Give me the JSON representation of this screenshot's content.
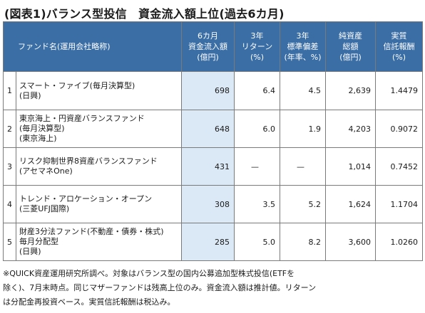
{
  "title": "(図表1)バランス型投信　資金流入額上位(過去6カ月)",
  "header": {
    "name": "ファンド名(運用会社略称)",
    "inflow": [
      "6カ月",
      "資金流入額",
      "(億円)"
    ],
    "ret": [
      "3年",
      "リターン",
      "(%)"
    ],
    "sd": [
      "3年",
      "標準偏差",
      "(年率、%)"
    ],
    "aum": [
      "純資産",
      "総額",
      "(億円)"
    ],
    "fee": [
      "実質",
      "信託報酬",
      "(%)"
    ]
  },
  "rows": [
    {
      "no": "1",
      "name": [
        "スマート・ファイブ(毎月決算型)",
        "(日興)"
      ],
      "inflow": "698",
      "ret": "6.4",
      "sd": "4.5",
      "aum": "2,639",
      "fee": "1.4479"
    },
    {
      "no": "2",
      "name": [
        "東京海上・円資産バランスファンド",
        "(毎月決算型)",
        "(東京海上)"
      ],
      "inflow": "648",
      "ret": "6.0",
      "sd": "1.9",
      "aum": "4,203",
      "fee": "0.9072"
    },
    {
      "no": "3",
      "name": [
        "リスク抑制世界8資産バランスファンド",
        "(アセマネOne)"
      ],
      "inflow": "431",
      "ret": "—",
      "sd": "—",
      "aum": "1,014",
      "fee": "0.7452"
    },
    {
      "no": "4",
      "name": [
        "トレンド・アロケーション・オープン",
        "(三菱UFJ国際)"
      ],
      "inflow": "308",
      "ret": "3.5",
      "sd": "5.2",
      "aum": "1,624",
      "fee": "1.1704"
    },
    {
      "no": "5",
      "name": [
        "財産3分法ファンド(不動産・債券・株式)",
        "毎月分配型",
        "(日興)"
      ],
      "inflow": "285",
      "ret": "5.0",
      "sd": "8.2",
      "aum": "3,600",
      "fee": "1.0260"
    }
  ],
  "note": [
    "※QUICK資産運用研究所調べ。対象はバランス型の国内公募追加型株式投信(ETFを",
    "除く)、7月末時点。同じマザーファンドは残高上位のみ。資金流入額は推計値。リターン",
    "は分配金再投資ベース。実質信託報酬は税込み。"
  ],
  "colors": {
    "header_bg": "#3a6ea5",
    "highlight_col": "#dbe8f5"
  }
}
